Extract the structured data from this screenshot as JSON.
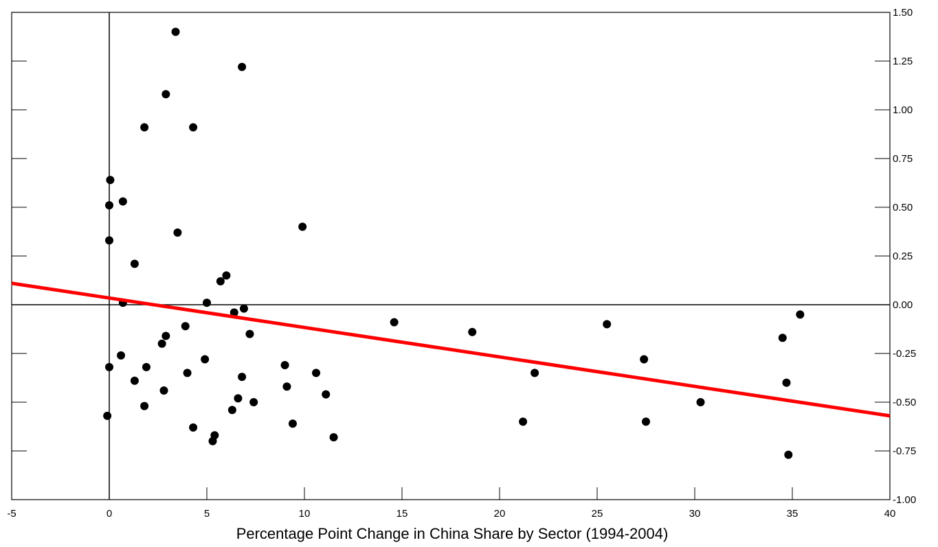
{
  "chart_data": {
    "type": "scatter",
    "title": "",
    "xlabel": "Percentage Point Change in China Share by Sector (1994-2004)",
    "ylabel": "",
    "xlim": [
      -5,
      40
    ],
    "ylim": [
      -1.0,
      1.5
    ],
    "x_ticks": [
      -5,
      0,
      5,
      10,
      15,
      20,
      25,
      30,
      35,
      40
    ],
    "y_ticks": [
      -1.0,
      -0.75,
      -0.5,
      -0.25,
      0.0,
      0.25,
      0.5,
      0.75,
      1.0,
      1.25,
      1.5
    ],
    "x_tick_labels": [
      "-5",
      "0",
      "5",
      "10",
      "15",
      "20",
      "25",
      "30",
      "35",
      "40"
    ],
    "y_tick_labels": [
      "-1.00",
      "-0.75",
      "-0.50",
      "-0.25",
      "0.00",
      "0.25",
      "0.50",
      "0.75",
      "1.00",
      "1.25",
      "1.50"
    ],
    "y_axis_side": "right",
    "grid": false,
    "reference_lines": {
      "x": 0,
      "y": 0
    },
    "point_color": "#000000",
    "fit_line": {
      "color": "#ff0000",
      "x": [
        -5,
        40
      ],
      "y": [
        0.11,
        -0.57
      ]
    },
    "points": [
      {
        "x": 3.4,
        "y": 1.4
      },
      {
        "x": 6.8,
        "y": 1.22
      },
      {
        "x": 2.9,
        "y": 1.08
      },
      {
        "x": 1.8,
        "y": 0.91
      },
      {
        "x": 4.3,
        "y": 0.91
      },
      {
        "x": 0.05,
        "y": 0.64
      },
      {
        "x": 0.0,
        "y": 0.51
      },
      {
        "x": 0.7,
        "y": 0.53
      },
      {
        "x": 9.9,
        "y": 0.4
      },
      {
        "x": 3.5,
        "y": 0.37
      },
      {
        "x": 0.0,
        "y": 0.33
      },
      {
        "x": 1.3,
        "y": 0.21
      },
      {
        "x": 6.0,
        "y": 0.15
      },
      {
        "x": 5.7,
        "y": 0.12
      },
      {
        "x": 0.7,
        "y": 0.01
      },
      {
        "x": 5.0,
        "y": 0.01
      },
      {
        "x": 6.9,
        "y": -0.02
      },
      {
        "x": 6.4,
        "y": -0.04
      },
      {
        "x": 3.9,
        "y": -0.11
      },
      {
        "x": 7.2,
        "y": -0.15
      },
      {
        "x": 2.9,
        "y": -0.16
      },
      {
        "x": 2.7,
        "y": -0.2
      },
      {
        "x": 0.6,
        "y": -0.26
      },
      {
        "x": 4.9,
        "y": -0.28
      },
      {
        "x": 0.0,
        "y": -0.32
      },
      {
        "x": 1.9,
        "y": -0.32
      },
      {
        "x": 9.0,
        "y": -0.31
      },
      {
        "x": 4.0,
        "y": -0.35
      },
      {
        "x": 10.6,
        "y": -0.35
      },
      {
        "x": 6.8,
        "y": -0.37
      },
      {
        "x": 1.3,
        "y": -0.39
      },
      {
        "x": 9.1,
        "y": -0.42
      },
      {
        "x": 2.8,
        "y": -0.44
      },
      {
        "x": 11.1,
        "y": -0.46
      },
      {
        "x": 6.6,
        "y": -0.48
      },
      {
        "x": 7.4,
        "y": -0.5
      },
      {
        "x": 1.8,
        "y": -0.52
      },
      {
        "x": 6.3,
        "y": -0.54
      },
      {
        "x": -0.1,
        "y": -0.57
      },
      {
        "x": 9.4,
        "y": -0.61
      },
      {
        "x": 4.3,
        "y": -0.63
      },
      {
        "x": 5.4,
        "y": -0.67
      },
      {
        "x": 11.5,
        "y": -0.68
      },
      {
        "x": 5.3,
        "y": -0.7
      },
      {
        "x": 14.6,
        "y": -0.09
      },
      {
        "x": 18.6,
        "y": -0.14
      },
      {
        "x": 21.8,
        "y": -0.35
      },
      {
        "x": 21.2,
        "y": -0.6
      },
      {
        "x": 25.5,
        "y": -0.1
      },
      {
        "x": 27.4,
        "y": -0.28
      },
      {
        "x": 27.5,
        "y": -0.6
      },
      {
        "x": 30.3,
        "y": -0.5
      },
      {
        "x": 34.5,
        "y": -0.17
      },
      {
        "x": 35.4,
        "y": -0.05
      },
      {
        "x": 34.7,
        "y": -0.4
      },
      {
        "x": 34.8,
        "y": -0.77
      }
    ]
  }
}
